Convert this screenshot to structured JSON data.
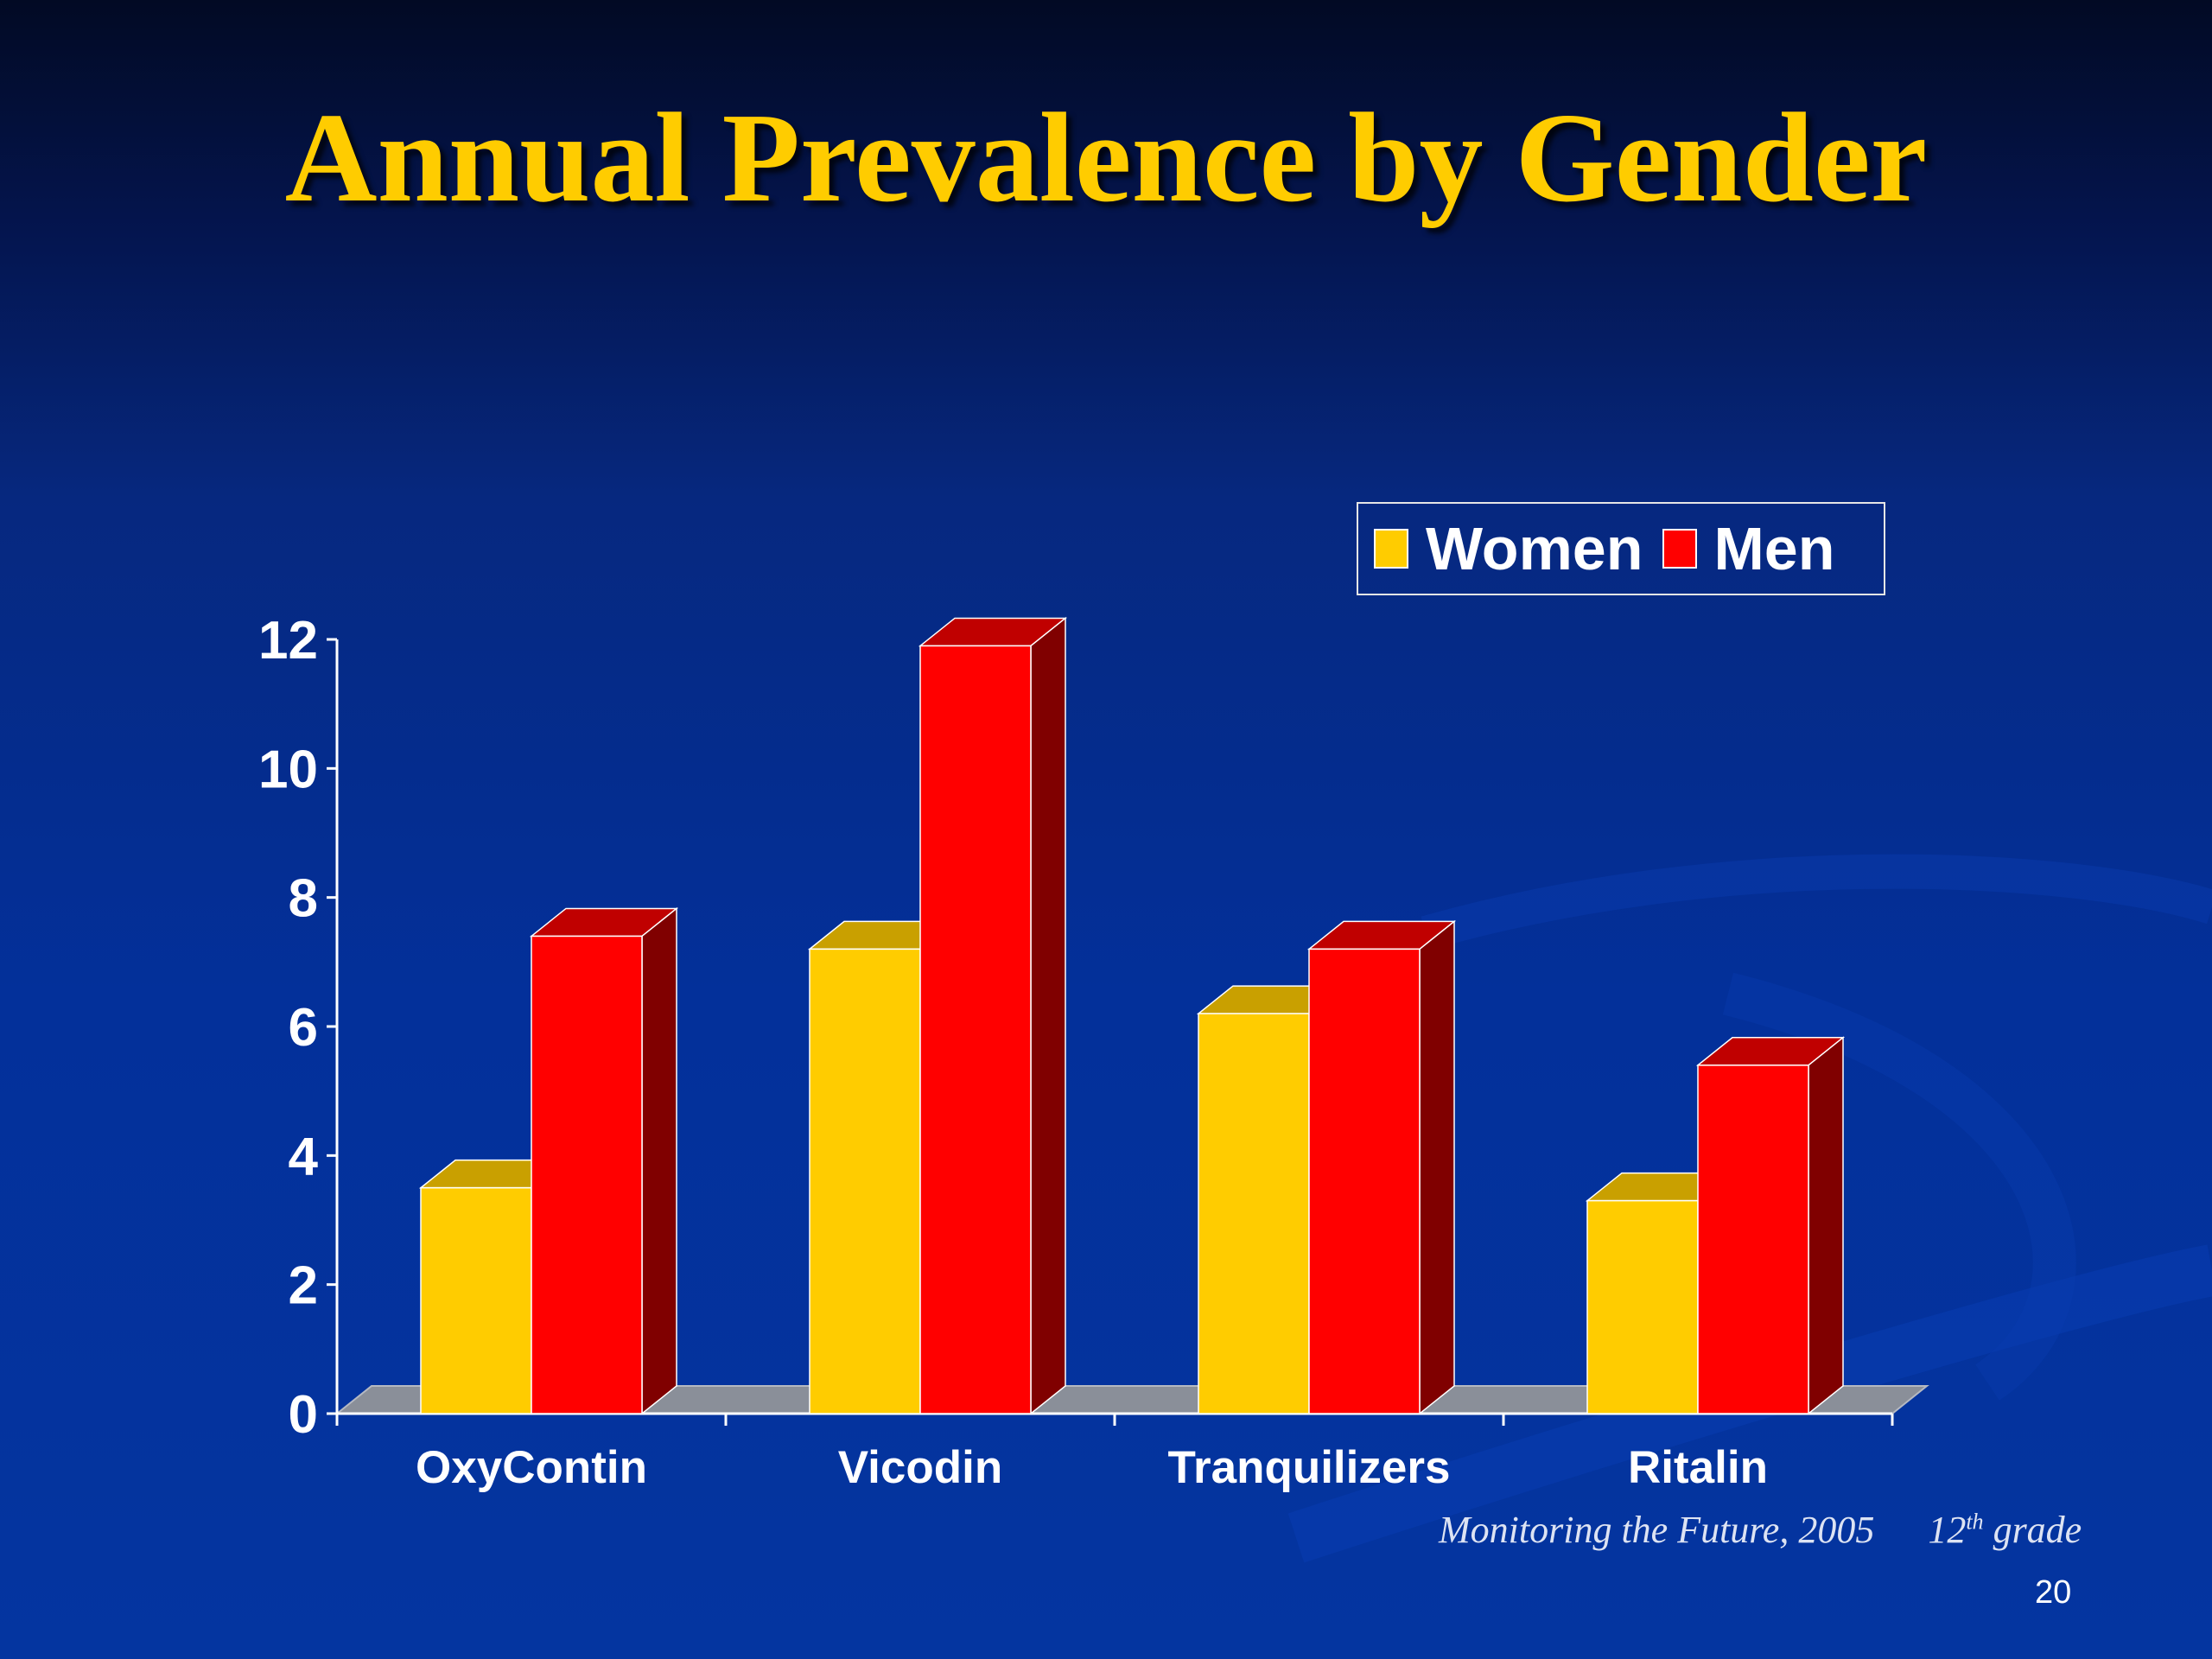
{
  "slide": {
    "title": "Annual Prevalence by Gender",
    "source": "Monitoring the Future, 2005",
    "grade_number": "12",
    "grade_suffix": "th",
    "grade_word": "grade",
    "page_number": "20"
  },
  "legend": {
    "items": [
      {
        "label": "Women",
        "color": "#ffcc00"
      },
      {
        "label": "Men",
        "color": "#ff0000"
      }
    ]
  },
  "chart_data": {
    "type": "bar",
    "style": "3d-clustered-column",
    "categories": [
      "OxyContin",
      "Vicodin",
      "Tranquilizers",
      "Ritalin"
    ],
    "series": [
      {
        "name": "Women",
        "values": [
          3.5,
          7.2,
          6.2,
          3.3
        ],
        "color": "#ffcc00"
      },
      {
        "name": "Men",
        "values": [
          7.4,
          11.9,
          7.2,
          5.4
        ],
        "color": "#ff0000"
      }
    ],
    "yticks": [
      0,
      2,
      4,
      6,
      8,
      10,
      12
    ],
    "ylim": [
      0,
      12
    ],
    "grid": false,
    "legend_position": "top-right"
  }
}
